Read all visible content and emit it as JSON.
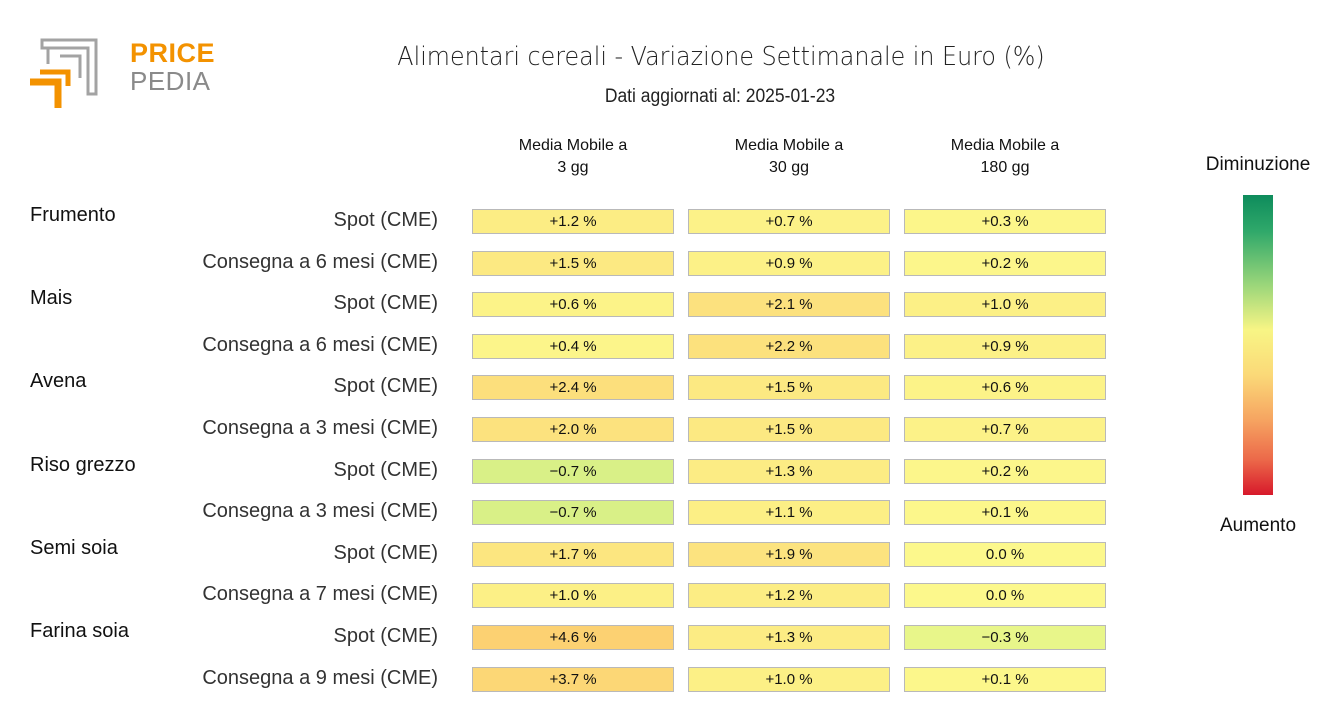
{
  "logo": {
    "word1": "PRICE",
    "word2": "PEDIA",
    "colors": {
      "orange": "#f39200",
      "gray": "#9a9a9a"
    }
  },
  "chart_data": {
    "type": "table",
    "title": "Alimentari cereali - Variazione Settimanale in Euro (%)",
    "subtitle": "Dati aggiornati al: 2025-01-23",
    "columns": [
      {
        "line1": "Media Mobile a",
        "line2": "3 gg"
      },
      {
        "line1": "Media Mobile a",
        "line2": "30 gg"
      },
      {
        "line1": "Media Mobile a",
        "line2": "180 gg"
      }
    ],
    "groups": [
      {
        "name": "Frumento",
        "rows": [
          {
            "label": "Spot (CME)",
            "values": [
              1.2,
              0.7,
              0.3
            ],
            "display": [
              "+1.2 %",
              "+0.7 %",
              "+0.3 %"
            ]
          },
          {
            "label": "Consegna a 6 mesi (CME)",
            "values": [
              1.5,
              0.9,
              0.2
            ],
            "display": [
              "+1.5 %",
              "+0.9 %",
              "+0.2 %"
            ]
          }
        ]
      },
      {
        "name": "Mais",
        "rows": [
          {
            "label": "Spot (CME)",
            "values": [
              0.6,
              2.1,
              1.0
            ],
            "display": [
              "+0.6 %",
              "+2.1 %",
              "+1.0 %"
            ]
          },
          {
            "label": "Consegna a 6 mesi (CME)",
            "values": [
              0.4,
              2.2,
              0.9
            ],
            "display": [
              "+0.4 %",
              "+2.2 %",
              "+0.9 %"
            ]
          }
        ]
      },
      {
        "name": "Avena",
        "rows": [
          {
            "label": "Spot (CME)",
            "values": [
              2.4,
              1.5,
              0.6
            ],
            "display": [
              "+2.4 %",
              "+1.5 %",
              "+0.6 %"
            ]
          },
          {
            "label": "Consegna a 3 mesi (CME)",
            "values": [
              2.0,
              1.5,
              0.7
            ],
            "display": [
              "+2.0 %",
              "+1.5 %",
              "+0.7 %"
            ]
          }
        ]
      },
      {
        "name": "Riso grezzo",
        "rows": [
          {
            "label": "Spot (CME)",
            "values": [
              -0.7,
              1.3,
              0.2
            ],
            "display": [
              "−0.7 %",
              "+1.3 %",
              "+0.2 %"
            ]
          },
          {
            "label": "Consegna a 3 mesi (CME)",
            "values": [
              -0.7,
              1.1,
              0.1
            ],
            "display": [
              "−0.7 %",
              "+1.1 %",
              "+0.1 %"
            ]
          }
        ]
      },
      {
        "name": "Semi soia",
        "rows": [
          {
            "label": "Spot (CME)",
            "values": [
              1.7,
              1.9,
              0.0
            ],
            "display": [
              "+1.7 %",
              "+1.9 %",
              "0.0 %"
            ]
          },
          {
            "label": "Consegna a 7 mesi (CME)",
            "values": [
              1.0,
              1.2,
              0.0
            ],
            "display": [
              "+1.0 %",
              "+1.2 %",
              "0.0 %"
            ]
          }
        ]
      },
      {
        "name": "Farina soia",
        "rows": [
          {
            "label": "Spot (CME)",
            "values": [
              4.6,
              1.3,
              -0.3
            ],
            "display": [
              "+4.6 %",
              "+1.3 %",
              "−0.3 %"
            ]
          },
          {
            "label": "Consegna a 9 mesi (CME)",
            "values": [
              3.7,
              1.0,
              0.1
            ],
            "display": [
              "+3.7 %",
              "+1.0 %",
              "+0.1 %"
            ]
          }
        ]
      }
    ],
    "legend": {
      "top": "Diminuzione",
      "bottom": "Aumento",
      "colors": [
        "#0e8c5c",
        "#9bd67a",
        "#f8f585",
        "#fbd978",
        "#f6a461",
        "#d7192b"
      ]
    }
  }
}
